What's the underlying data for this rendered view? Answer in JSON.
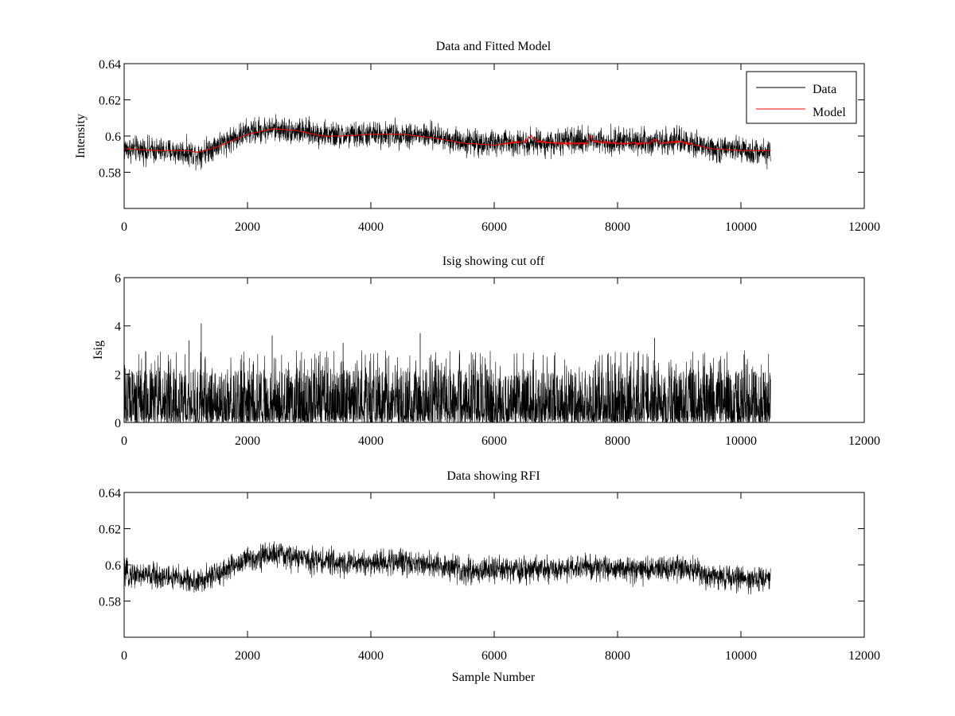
{
  "figure_title": "Data and Fitted Model",
  "chart_data": [
    {
      "type": "line",
      "title": "Data and Fitted Model",
      "xlabel": "",
      "ylabel": "Intensity",
      "xlim": [
        0,
        12000
      ],
      "ylim": [
        0.56,
        0.64
      ],
      "xticks": [
        0,
        2000,
        4000,
        6000,
        8000,
        10000,
        12000
      ],
      "xtick_labels": [
        "0",
        "2000",
        "4000",
        "6000",
        "8000",
        "10000",
        "12000"
      ],
      "yticks": [
        0.58,
        0.6,
        0.62,
        0.64
      ],
      "ytick_labels": [
        "0.58",
        "0.6",
        "0.62",
        "0.64"
      ],
      "legend": {
        "placement": "top-right",
        "entries": [
          "Data",
          "Model"
        ]
      },
      "colors": {
        "Data": "#000000",
        "Model": "#ff0000"
      },
      "series": [
        {
          "name": "Data",
          "style": "noisy",
          "x": [
            0,
            500,
            1000,
            1200,
            1500,
            2000,
            2400,
            3000,
            3500,
            4000,
            4500,
            5000,
            5500,
            6000,
            6500,
            7000,
            7500,
            8000,
            8500,
            9000,
            9500,
            10000,
            10480
          ],
          "values": [
            0.593,
            0.592,
            0.591,
            0.59,
            0.595,
            0.602,
            0.604,
            0.602,
            0.6,
            0.601,
            0.601,
            0.6,
            0.597,
            0.596,
            0.597,
            0.596,
            0.598,
            0.597,
            0.597,
            0.597,
            0.593,
            0.592,
            0.591
          ],
          "noise": 0.007
        },
        {
          "name": "Model",
          "style": "smooth",
          "x": [
            0,
            500,
            1000,
            1200,
            1500,
            2000,
            2400,
            2800,
            3200,
            3500,
            4000,
            4500,
            5000,
            5500,
            6000,
            6200,
            6500,
            6600,
            6700,
            7000,
            7500,
            7550,
            7600,
            8000,
            8500,
            8600,
            8700,
            9000,
            9500,
            10000,
            10480
          ],
          "values": [
            0.593,
            0.592,
            0.592,
            0.591,
            0.594,
            0.601,
            0.604,
            0.603,
            0.6,
            0.6,
            0.601,
            0.601,
            0.599,
            0.596,
            0.595,
            0.596,
            0.597,
            0.6,
            0.597,
            0.596,
            0.596,
            0.601,
            0.597,
            0.596,
            0.596,
            0.598,
            0.596,
            0.597,
            0.593,
            0.592,
            0.592
          ]
        }
      ]
    },
    {
      "type": "line",
      "title": "Isig showing cut off",
      "xlabel": "",
      "ylabel": "Isig",
      "xlim": [
        0,
        12000
      ],
      "ylim": [
        0,
        6
      ],
      "xticks": [
        0,
        2000,
        4000,
        6000,
        8000,
        10000,
        12000
      ],
      "xtick_labels": [
        "0",
        "2000",
        "4000",
        "6000",
        "8000",
        "10000",
        "12000"
      ],
      "yticks": [
        0,
        2,
        4,
        6
      ],
      "ytick_labels": [
        "0",
        "2",
        "4",
        "6"
      ],
      "series": [
        {
          "name": "Isig",
          "style": "spiky",
          "x": [
            0,
            10480
          ],
          "values": [
            0.8,
            0.8
          ],
          "max_peak": 4.1,
          "peaks": [
            {
              "x": 1250,
              "y": 4.1
            },
            {
              "x": 4800,
              "y": 3.7
            },
            {
              "x": 2400,
              "y": 3.6
            },
            {
              "x": 8600,
              "y": 3.5
            },
            {
              "x": 1050,
              "y": 3.4
            },
            {
              "x": 3550,
              "y": 3.3
            }
          ]
        }
      ]
    },
    {
      "type": "line",
      "title": "Data showing RFI",
      "xlabel": "Sample Number",
      "ylabel": "",
      "xlim": [
        0,
        12000
      ],
      "ylim": [
        0.56,
        0.64
      ],
      "xticks": [
        0,
        2000,
        4000,
        6000,
        8000,
        10000,
        12000
      ],
      "xtick_labels": [
        "0",
        "2000",
        "4000",
        "6000",
        "8000",
        "10000",
        "12000"
      ],
      "yticks": [
        0.58,
        0.6,
        0.62,
        0.64
      ],
      "ytick_labels": [
        "0.58",
        "0.6",
        "0.62",
        "0.64"
      ],
      "series": [
        {
          "name": "Data",
          "style": "noisy",
          "x": [
            0,
            500,
            1000,
            1200,
            1500,
            2000,
            2400,
            3000,
            3500,
            4000,
            4500,
            5000,
            5500,
            6000,
            6500,
            7000,
            7500,
            8000,
            8500,
            9000,
            9500,
            10000,
            10480
          ],
          "values": [
            0.595,
            0.594,
            0.592,
            0.59,
            0.595,
            0.603,
            0.606,
            0.603,
            0.601,
            0.601,
            0.602,
            0.6,
            0.597,
            0.597,
            0.597,
            0.597,
            0.599,
            0.598,
            0.597,
            0.598,
            0.594,
            0.593,
            0.592
          ],
          "noise": 0.007
        }
      ]
    }
  ]
}
